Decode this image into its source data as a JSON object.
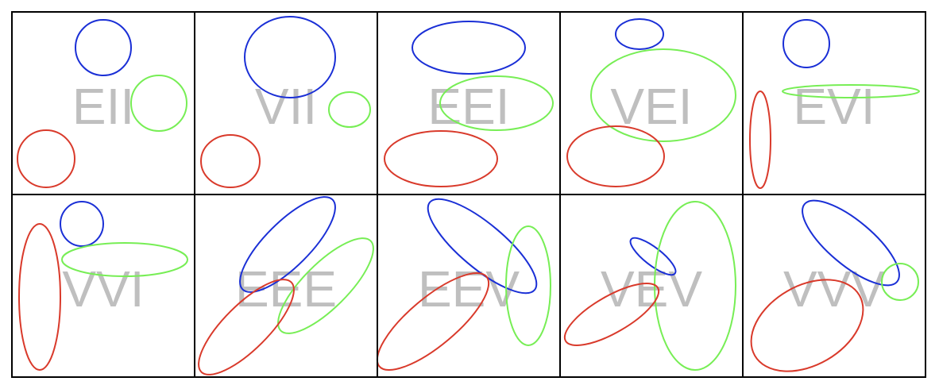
{
  "colors": {
    "red": "#d93a2b",
    "green": "#77ee55",
    "blue": "#1a2fd6",
    "label": "#bfbfbf",
    "border": "#000000"
  },
  "panels": [
    {
      "label": "EII"
    },
    {
      "label": "VII"
    },
    {
      "label": "EEI"
    },
    {
      "label": "VEI"
    },
    {
      "label": "EVI"
    },
    {
      "label": "VVI"
    },
    {
      "label": "EEE"
    },
    {
      "label": "EEV"
    },
    {
      "label": "VEV"
    },
    {
      "label": "VVV"
    }
  ]
}
